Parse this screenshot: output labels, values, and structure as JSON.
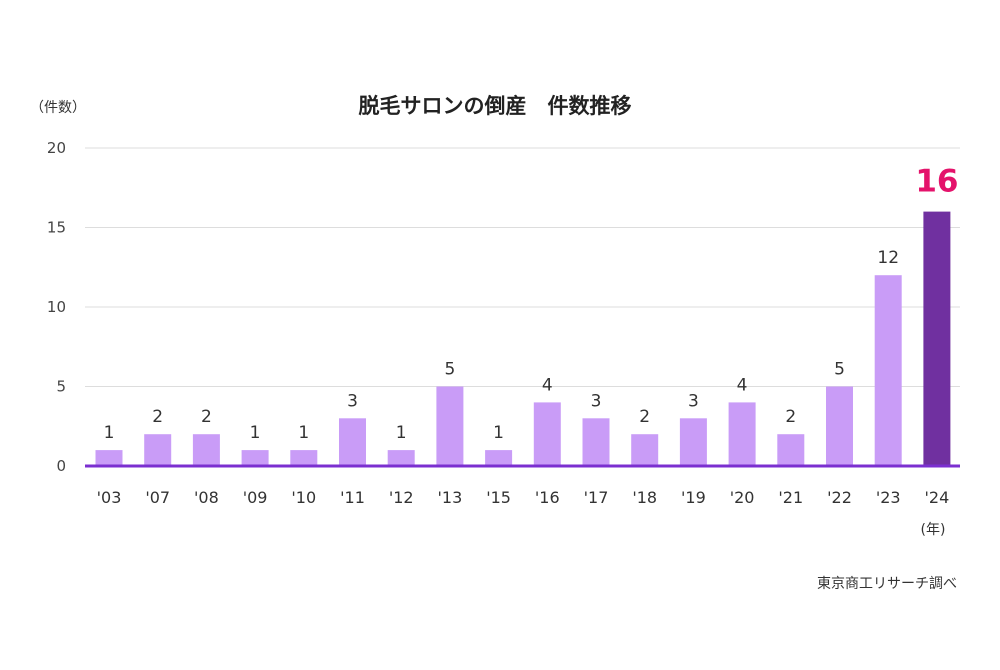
{
  "chart_data": {
    "type": "bar",
    "title": "脱毛サロンの倒産　件数推移",
    "ylabel": "（件数）",
    "xlabel": "(年)",
    "source": "東京商工リサーチ調べ",
    "categories": [
      "'03",
      "'07",
      "'08",
      "'09",
      "'10",
      "'11",
      "'12",
      "'13",
      "'15",
      "'16",
      "'17",
      "'18",
      "'19",
      "'20",
      "'21",
      "'22",
      "'23",
      "'24"
    ],
    "values": [
      1,
      2,
      2,
      1,
      1,
      3,
      1,
      5,
      1,
      4,
      3,
      2,
      3,
      4,
      2,
      5,
      12,
      16
    ],
    "ylim": [
      0,
      20
    ],
    "yticks": [
      0,
      5,
      10,
      15,
      20
    ],
    "highlight_category": "'24",
    "grid": true,
    "colors": {
      "bar": "#c99cf7",
      "bar_highlight": "#7030a0",
      "axis": "#7b2fd0",
      "grid": "#dddddd",
      "highlight_label": "#e4136b"
    }
  }
}
